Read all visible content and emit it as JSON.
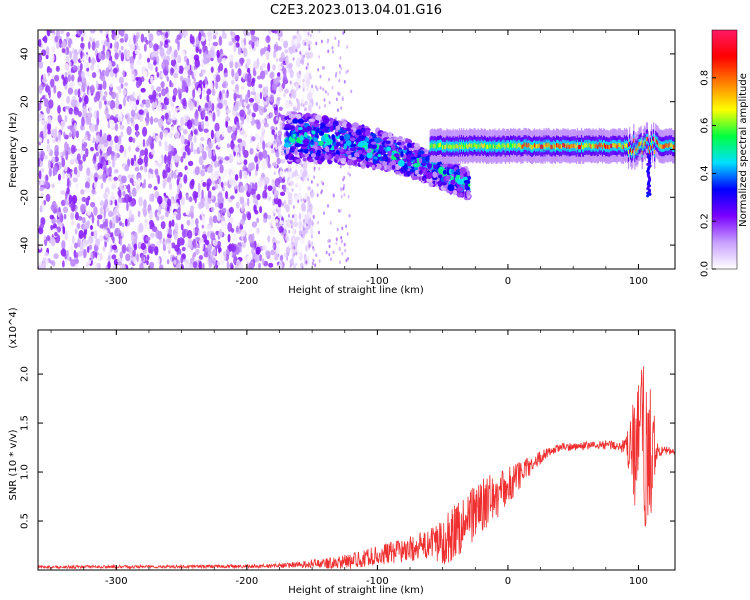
{
  "title": "C2E3.2023.013.04.01.G16",
  "chart_data": [
    {
      "type": "heatmap",
      "xlabel": "Height of straight line (km)",
      "ylabel": "Frequency (Hz)",
      "xlim": [
        -360,
        128
      ],
      "ylim": [
        -50,
        50
      ],
      "x_ticks": [
        -300,
        -200,
        -100,
        0,
        100
      ],
      "x_tick_labels": [
        "-300",
        "-200",
        "-100",
        "0",
        "100"
      ],
      "y_ticks": [
        -40,
        -20,
        0,
        20,
        40
      ],
      "y_tick_labels": [
        "-40",
        "-20",
        "0",
        "20",
        "40"
      ],
      "colorbar": {
        "label": "Normalized spectral amplitude",
        "range": [
          0,
          1
        ],
        "ticks": [
          0.0,
          0.2,
          0.4,
          0.6,
          0.8
        ],
        "tick_labels": [
          "0.0",
          "0.2",
          "0.4",
          "0.6",
          "0.8"
        ],
        "colormap": [
          "#ffffff",
          "#c8a0ff",
          "#7a00ff",
          "#0000ff",
          "#00e0ff",
          "#00ff40",
          "#ffff00",
          "#ff8000",
          "#ff0000",
          "#ff1a66"
        ]
      },
      "features": [
        {
          "region": "noise",
          "x_range": [
            -360,
            -170
          ],
          "freq_range": [
            -50,
            50
          ],
          "amplitude": 0.1
        },
        {
          "region": "transition",
          "x_range": [
            -170,
            -30
          ],
          "freq_center_start": 5,
          "freq_center_end": -15,
          "amplitude": 0.35
        },
        {
          "region": "carrier",
          "x_range": [
            -60,
            128
          ],
          "freq": 1.5,
          "amplitude": 0.9
        }
      ]
    },
    {
      "type": "line",
      "xlabel": "Height of straight line (km)",
      "ylabel": "SNR (10 * v/v)",
      "y_multiplier": "(x10^4)",
      "xlim": [
        -360,
        128
      ],
      "ylim": [
        0,
        24500
      ],
      "x_ticks": [
        -300,
        -200,
        -100,
        0,
        100
      ],
      "x_tick_labels": [
        "-300",
        "-200",
        "-100",
        "0",
        "100"
      ],
      "y_ticks": [
        5000,
        10000,
        15000,
        20000
      ],
      "y_tick_labels": [
        "0.5",
        "1.0",
        "1.5",
        "2.0"
      ],
      "color": "#f03030",
      "envelope": {
        "x": [
          -360,
          -250,
          -180,
          -150,
          -120,
          -100,
          -80,
          -60,
          -50,
          -40,
          -30,
          -20,
          -10,
          0,
          10,
          20,
          30,
          40,
          60,
          80,
          90,
          100,
          105,
          110,
          115,
          128
        ],
        "mean": [
          300,
          350,
          400,
          600,
          900,
          1500,
          2000,
          2600,
          3000,
          4000,
          5500,
          6500,
          7500,
          8500,
          9800,
          11000,
          12000,
          12500,
          12700,
          12800,
          12500,
          12000,
          11500,
          12000,
          12200,
          12100
        ],
        "amp": [
          150,
          150,
          200,
          400,
          800,
          1000,
          1200,
          1500,
          2500,
          3000,
          3000,
          2800,
          2500,
          2000,
          1500,
          800,
          500,
          400,
          400,
          500,
          800,
          8000,
          10000,
          6000,
          600,
          300
        ]
      }
    }
  ]
}
